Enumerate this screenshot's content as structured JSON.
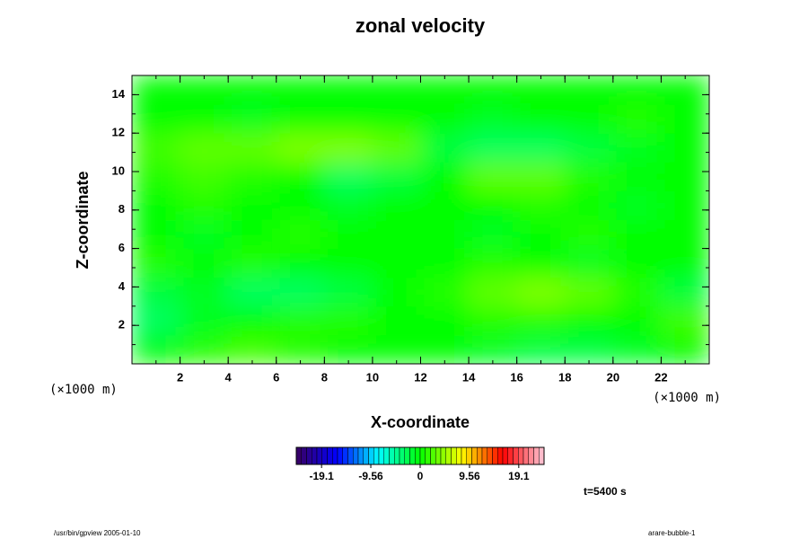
{
  "chart_data": {
    "type": "heatmap",
    "title": "zonal velocity",
    "x_label": "X-coordinate",
    "y_label": "Z-coordinate",
    "x_unit": "(×1000 m)",
    "y_unit": "(×1000 m)",
    "annotation": "t=5400 s",
    "footer_left": "/usr/bin/gpview 2005-01-10",
    "footer_right": "arare-bubble-1",
    "xlim": [
      0,
      24
    ],
    "ylim": [
      0,
      15
    ],
    "xticks": [
      2,
      4,
      6,
      8,
      10,
      12,
      14,
      16,
      18,
      20,
      22
    ],
    "yticks": [
      2,
      4,
      6,
      8,
      10,
      12,
      14
    ],
    "x": [
      1,
      3,
      5,
      7,
      9,
      11,
      13,
      15,
      17,
      19,
      21,
      23
    ],
    "y": [
      0.75,
      2.25,
      3.75,
      5.25,
      6.75,
      8.25,
      9.75,
      11.25,
      12.75,
      14.25
    ],
    "z": [
      [
        0,
        1,
        2,
        1,
        0,
        0,
        0,
        -1,
        -2,
        -2,
        -1,
        0
      ],
      [
        -3,
        -1,
        0,
        1,
        1,
        0,
        0,
        1,
        1,
        0,
        0,
        2
      ],
      [
        -2,
        -1,
        -3,
        -3,
        -2,
        0,
        1,
        3,
        4,
        3,
        1,
        -2
      ],
      [
        1,
        0,
        1,
        0,
        0,
        0,
        0,
        1,
        0,
        -1,
        0,
        0
      ],
      [
        0,
        -1,
        0,
        1,
        0,
        0,
        0,
        -1,
        0,
        1,
        0,
        0
      ],
      [
        0,
        1,
        0,
        0,
        -1,
        0,
        0,
        0,
        1,
        0,
        -1,
        0
      ],
      [
        1,
        2,
        1,
        0,
        -3,
        -2,
        0,
        3,
        3,
        1,
        0,
        0
      ],
      [
        2,
        3,
        3,
        4,
        4,
        3,
        -2,
        -3,
        -3,
        -2,
        -1,
        0
      ],
      [
        0,
        0,
        -1,
        0,
        0,
        0,
        0,
        -1,
        0,
        0,
        1,
        0
      ],
      [
        0,
        0,
        0,
        0,
        0,
        0,
        0,
        0,
        0,
        0,
        0,
        0
      ]
    ],
    "clim": [
      -24,
      24
    ],
    "cticks": [
      -19.1,
      -9.56,
      0,
      9.56,
      19.1
    ],
    "colormap": [
      "#3a0060",
      "#0000ff",
      "#00ffff",
      "#00ff00",
      "#ffff00",
      "#ff0000",
      "#ffc8d8"
    ]
  }
}
